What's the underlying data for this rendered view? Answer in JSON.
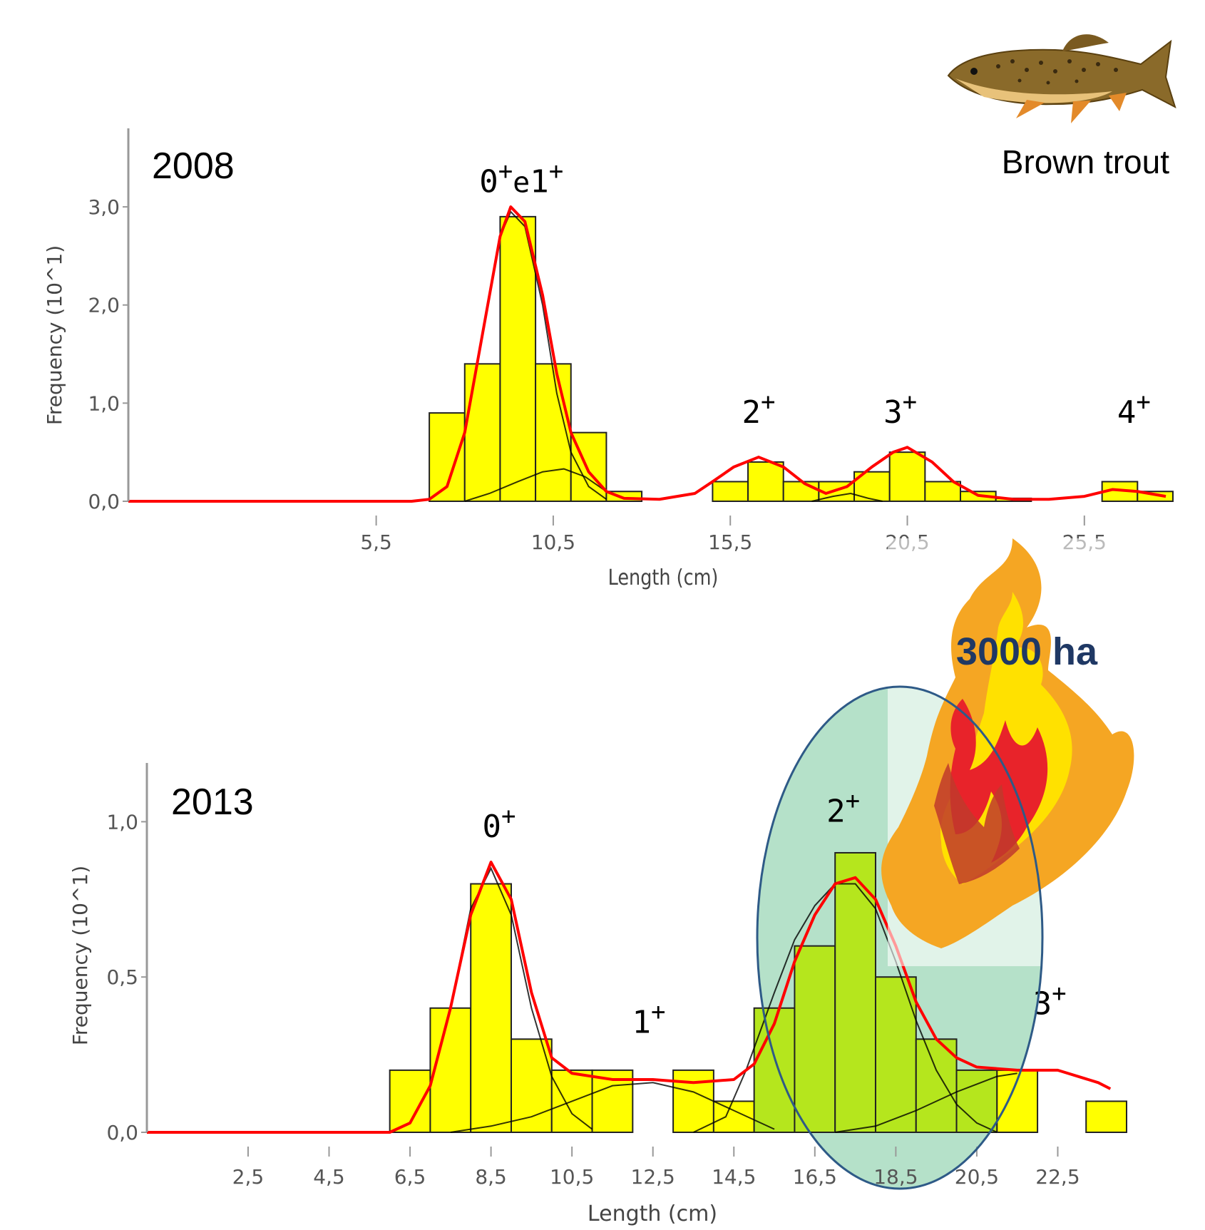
{
  "species_label": "Brown trout",
  "fire_label": "3000 ha",
  "colors": {
    "bar_fill": "#ffff00",
    "bar_fill_highlight": "#b5e61d",
    "fit_line": "#ff0000",
    "component_line": "#000000",
    "ellipse_fill": "#a8dcc0",
    "ellipse_stroke": "#2e5a87",
    "fire_outer": "#f5a623",
    "fire_inner": "#e8232a",
    "fire_text": "#1f3864"
  },
  "icons": {
    "fish": "brown-trout-illustration",
    "fire": "flame-illustration"
  },
  "chart_data": [
    {
      "type": "bar",
      "year_label": "2008",
      "xlabel": "Length (cm)",
      "ylabel": "Frequency (10^1)",
      "ylabel_display": "Frequency (10^1)",
      "tick_labels_x": [
        "5,5",
        "10,5",
        "15,5",
        "20,5",
        "25,5"
      ],
      "tick_values_x": [
        5.5,
        10.5,
        15.5,
        20.5,
        25.5
      ],
      "tick_labels_y": [
        "0,0",
        "1,0",
        "2,0",
        "3,0"
      ],
      "tick_values_y": [
        0,
        1,
        2,
        3
      ],
      "xlim": [
        -1.5,
        27.9
      ],
      "ylim": [
        0,
        3.8
      ],
      "bar_width": 1.0,
      "bins": [
        7.5,
        8.5,
        9.5,
        10.5,
        11.5,
        12.5,
        15.5,
        16.5,
        17.5,
        18.5,
        19.5,
        20.5,
        21.5,
        22.5,
        23.5,
        26.5,
        27.5
      ],
      "values": [
        0.9,
        1.4,
        2.9,
        1.4,
        0.7,
        0.1,
        0.2,
        0.4,
        0.2,
        0.2,
        0.3,
        0.5,
        0.2,
        0.1,
        0.03,
        0.2,
        0.1
      ],
      "fit_curve": [
        [
          -1.5,
          0
        ],
        [
          6.5,
          0
        ],
        [
          7.0,
          0.02
        ],
        [
          7.5,
          0.15
        ],
        [
          8.0,
          0.7
        ],
        [
          8.5,
          1.7
        ],
        [
          9.0,
          2.7
        ],
        [
          9.3,
          3.0
        ],
        [
          9.7,
          2.85
        ],
        [
          10.2,
          2.1
        ],
        [
          10.6,
          1.3
        ],
        [
          11.0,
          0.7
        ],
        [
          11.5,
          0.3
        ],
        [
          12.0,
          0.1
        ],
        [
          12.5,
          0.03
        ],
        [
          13.5,
          0.02
        ],
        [
          14.5,
          0.08
        ],
        [
          15.0,
          0.2
        ],
        [
          15.6,
          0.35
        ],
        [
          16.3,
          0.45
        ],
        [
          17.0,
          0.35
        ],
        [
          17.6,
          0.18
        ],
        [
          18.2,
          0.08
        ],
        [
          18.8,
          0.15
        ],
        [
          19.5,
          0.35
        ],
        [
          20.1,
          0.5
        ],
        [
          20.5,
          0.55
        ],
        [
          21.2,
          0.4
        ],
        [
          21.8,
          0.2
        ],
        [
          22.5,
          0.06
        ],
        [
          23.5,
          0.02
        ],
        [
          24.5,
          0.02
        ],
        [
          25.5,
          0.05
        ],
        [
          26.3,
          0.12
        ],
        [
          27.0,
          0.1
        ],
        [
          27.8,
          0.05
        ]
      ],
      "components": [
        [
          [
            8.0,
            0.0
          ],
          [
            8.7,
            0.08
          ],
          [
            9.5,
            0.2
          ],
          [
            10.2,
            0.3
          ],
          [
            10.8,
            0.33
          ],
          [
            11.4,
            0.25
          ],
          [
            12.0,
            0.1
          ],
          [
            12.6,
            0.02
          ]
        ],
        [
          [
            8.0,
            0.7
          ],
          [
            8.5,
            1.7
          ],
          [
            9.0,
            2.7
          ],
          [
            9.3,
            2.95
          ],
          [
            9.7,
            2.8
          ],
          [
            10.2,
            2.0
          ],
          [
            10.6,
            1.1
          ],
          [
            11.0,
            0.5
          ],
          [
            11.5,
            0.15
          ],
          [
            12.0,
            0.02
          ]
        ],
        [
          [
            17.8,
            0.0
          ],
          [
            18.4,
            0.05
          ],
          [
            18.9,
            0.08
          ],
          [
            19.4,
            0.03
          ],
          [
            19.8,
            0.0
          ]
        ]
      ],
      "cohort_labels": [
        {
          "label": "0",
          "sup": "+",
          "mid": "e",
          "label2": "1",
          "sup2": "+",
          "x": 9.6,
          "y": 3.15
        },
        {
          "label": "2",
          "sup": "+",
          "x": 16.3,
          "y": 0.8
        },
        {
          "label": "3",
          "sup": "+",
          "x": 20.3,
          "y": 0.8
        },
        {
          "label": "4",
          "sup": "+",
          "x": 26.9,
          "y": 0.8
        }
      ]
    },
    {
      "type": "bar",
      "year_label": "2013",
      "xlabel": "Length (cm)",
      "ylabel": "Frequency (10^1)",
      "ylabel_display": "Frequency (10^1)",
      "tick_labels_x": [
        "2,5",
        "4,5",
        "6,5",
        "8,5",
        "10,5",
        "12,5",
        "14,5",
        "16,5",
        "18,5",
        "20,5",
        "22,5"
      ],
      "tick_values_x": [
        2.5,
        4.5,
        6.5,
        8.5,
        10.5,
        12.5,
        14.5,
        16.5,
        18.5,
        20.5,
        22.5
      ],
      "tick_labels_y": [
        "0,0",
        "0,5",
        "1,0"
      ],
      "tick_values_y": [
        0,
        0.5,
        1.0
      ],
      "xlim": [
        0.0,
        24.2
      ],
      "ylim": [
        0,
        1.18
      ],
      "bar_width": 1.0,
      "bins": [
        6.5,
        7.5,
        8.5,
        9.5,
        10.5,
        11.5,
        13.5,
        14.5,
        15.5,
        16.5,
        17.5,
        18.5,
        19.5,
        20.5,
        21.5,
        23.7
      ],
      "values": [
        0.2,
        0.4,
        0.8,
        0.3,
        0.2,
        0.2,
        0.2,
        0.1,
        0.4,
        0.6,
        0.9,
        0.5,
        0.3,
        0.2,
        0.2,
        0.1
      ],
      "highlight_bins": [
        15.5,
        16.5,
        17.5,
        18.5,
        19.5,
        20.5
      ],
      "fit_curve": [
        [
          0,
          0
        ],
        [
          6.0,
          0
        ],
        [
          6.5,
          0.03
        ],
        [
          7.0,
          0.15
        ],
        [
          7.5,
          0.4
        ],
        [
          8.0,
          0.7
        ],
        [
          8.5,
          0.87
        ],
        [
          9.0,
          0.75
        ],
        [
          9.5,
          0.45
        ],
        [
          10.0,
          0.24
        ],
        [
          10.5,
          0.19
        ],
        [
          11.5,
          0.17
        ],
        [
          12.5,
          0.17
        ],
        [
          13.5,
          0.16
        ],
        [
          14.5,
          0.17
        ],
        [
          15.0,
          0.22
        ],
        [
          15.5,
          0.35
        ],
        [
          16.0,
          0.55
        ],
        [
          16.5,
          0.7
        ],
        [
          17.0,
          0.8
        ],
        [
          17.5,
          0.82
        ],
        [
          18.0,
          0.75
        ],
        [
          18.5,
          0.6
        ],
        [
          19.0,
          0.42
        ],
        [
          19.5,
          0.3
        ],
        [
          20.0,
          0.24
        ],
        [
          20.5,
          0.21
        ],
        [
          21.5,
          0.2
        ],
        [
          22.5,
          0.2
        ],
        [
          23.5,
          0.16
        ],
        [
          23.8,
          0.14
        ]
      ],
      "components": [
        [
          [
            6.5,
            0.03
          ],
          [
            7.0,
            0.15
          ],
          [
            7.5,
            0.4
          ],
          [
            8.0,
            0.72
          ],
          [
            8.5,
            0.85
          ],
          [
            9.0,
            0.7
          ],
          [
            9.5,
            0.4
          ],
          [
            10.0,
            0.18
          ],
          [
            10.5,
            0.06
          ],
          [
            11.0,
            0.01
          ]
        ],
        [
          [
            7.5,
            0.0
          ],
          [
            8.5,
            0.02
          ],
          [
            9.5,
            0.05
          ],
          [
            10.5,
            0.1
          ],
          [
            11.5,
            0.15
          ],
          [
            12.5,
            0.16
          ],
          [
            13.5,
            0.13
          ],
          [
            14.5,
            0.07
          ],
          [
            15.5,
            0.01
          ]
        ],
        [
          [
            13.5,
            0.0
          ],
          [
            14.3,
            0.05
          ],
          [
            14.8,
            0.2
          ],
          [
            15.5,
            0.45
          ],
          [
            16.0,
            0.62
          ],
          [
            16.5,
            0.73
          ],
          [
            17.0,
            0.8
          ],
          [
            17.5,
            0.8
          ],
          [
            18.0,
            0.72
          ],
          [
            18.5,
            0.55
          ],
          [
            19.0,
            0.36
          ],
          [
            19.5,
            0.2
          ],
          [
            20.0,
            0.09
          ],
          [
            20.5,
            0.03
          ],
          [
            21.0,
            0.0
          ]
        ],
        [
          [
            17.0,
            0.0
          ],
          [
            18.0,
            0.02
          ],
          [
            19.0,
            0.07
          ],
          [
            20.0,
            0.13
          ],
          [
            21.0,
            0.18
          ],
          [
            21.5,
            0.19
          ]
        ]
      ],
      "cohort_labels": [
        {
          "label": "0",
          "sup": "+",
          "x": 8.7,
          "y": 0.95
        },
        {
          "label": "1",
          "sup": "+",
          "x": 12.4,
          "y": 0.32
        },
        {
          "label": "2",
          "sup": "+",
          "x": 17.2,
          "y": 1.0
        },
        {
          "label": "3",
          "sup": "+",
          "x": 22.3,
          "y": 0.38
        }
      ]
    }
  ]
}
